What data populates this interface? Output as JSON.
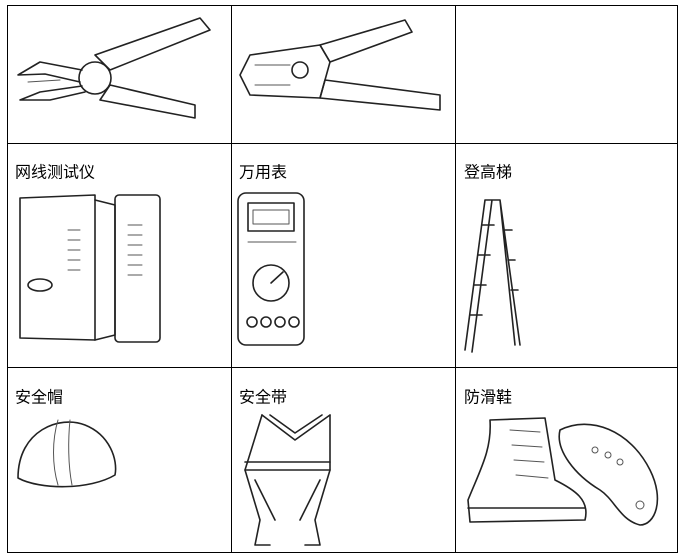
{
  "table": {
    "rows": [
      [
        "网线测试仪",
        "万用表",
        "登高梯"
      ],
      [
        "安全帽",
        "安全带",
        "防滑鞋"
      ]
    ]
  }
}
